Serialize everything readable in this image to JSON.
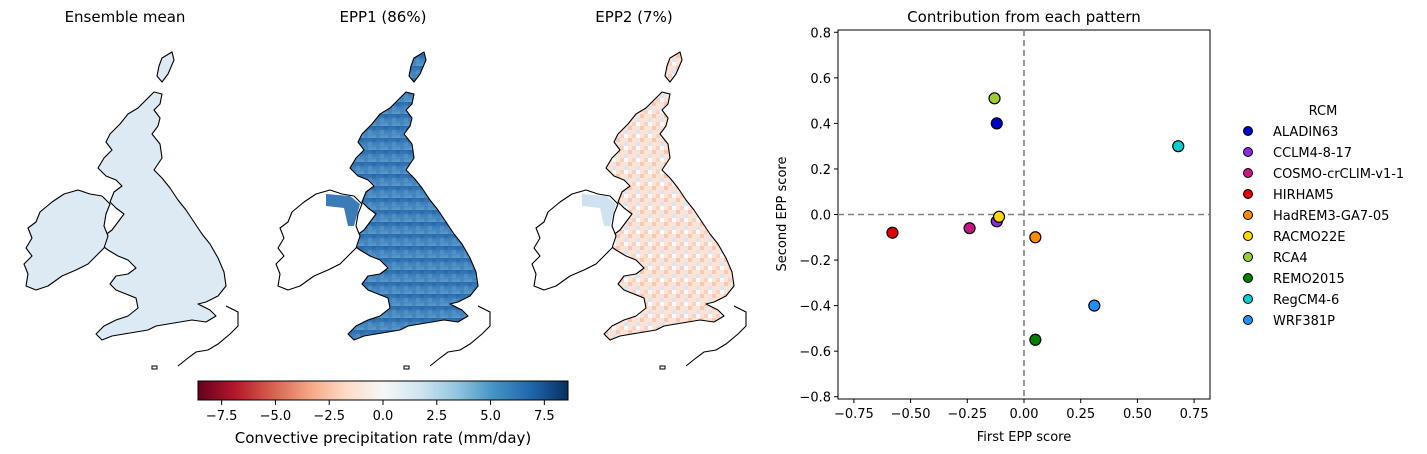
{
  "maps": {
    "panels": [
      {
        "title": "Ensemble mean",
        "style": "mean"
      },
      {
        "title": "EPP1 (86%)",
        "style": "epp1"
      },
      {
        "title": "EPP2 (7%)",
        "style": "epp2"
      }
    ],
    "colorbar": {
      "label": "Convective precipitation rate (mm/day)",
      "range": [
        -8.6,
        8.6
      ],
      "ticks": [
        -7.5,
        -5.0,
        -2.5,
        0.0,
        2.5,
        5.0,
        7.5
      ],
      "tick_labels": [
        "−7.5",
        "−5.0",
        "−2.5",
        "0.0",
        "2.5",
        "5.0",
        "7.5"
      ],
      "colormap": [
        "#67001f",
        "#b2182b",
        "#d6604d",
        "#f4a582",
        "#fddbc7",
        "#f7f7f7",
        "#d1e5f0",
        "#92c5de",
        "#4393c3",
        "#2166ac",
        "#053061"
      ]
    }
  },
  "chart_data": {
    "type": "scatter",
    "title": "Contribution from each pattern",
    "xlabel": "First EPP score",
    "ylabel": "Second EPP score",
    "xlim": [
      -0.82,
      0.82
    ],
    "ylim": [
      -0.81,
      0.81
    ],
    "x_ticks": [
      -0.75,
      -0.5,
      -0.25,
      0.0,
      0.25,
      0.5,
      0.75
    ],
    "x_tick_labels": [
      "−0.75",
      "−0.50",
      "−0.25",
      "0.00",
      "0.25",
      "0.50",
      "0.75"
    ],
    "y_ticks": [
      -0.8,
      -0.6,
      -0.4,
      -0.2,
      0.0,
      0.2,
      0.4,
      0.6,
      0.8
    ],
    "y_tick_labels": [
      "−0.8",
      "−0.6",
      "−0.4",
      "−0.2",
      "0.0",
      "0.2",
      "0.4",
      "0.6",
      "0.8"
    ],
    "reference_lines": {
      "x": 0.0,
      "y": 0.0,
      "style": "dashed",
      "color": "#808080"
    },
    "grid": false,
    "legend": {
      "title": "RCM",
      "placement": "outside right"
    },
    "series": [
      {
        "name": "ALADIN63",
        "color": "#0000cd",
        "x": -0.12,
        "y": 0.4
      },
      {
        "name": "CCLM4-8-17",
        "color": "#8a2be2",
        "x": -0.12,
        "y": -0.03
      },
      {
        "name": "COSMO-crCLIM-v1-1",
        "color": "#c71585",
        "x": -0.24,
        "y": -0.06
      },
      {
        "name": "HIRHAM5",
        "color": "#e00000",
        "x": -0.58,
        "y": -0.08
      },
      {
        "name": "HadREM3-GA7-05",
        "color": "#ff8c00",
        "x": 0.05,
        "y": -0.1
      },
      {
        "name": "RACMO22E",
        "color": "#ffd700",
        "x": -0.11,
        "y": -0.01
      },
      {
        "name": "RCA4",
        "color": "#9acd32",
        "x": -0.13,
        "y": 0.51
      },
      {
        "name": "REMO2015",
        "color": "#008000",
        "x": 0.05,
        "y": -0.55
      },
      {
        "name": "RegCM4-6",
        "color": "#00ced1",
        "x": 0.68,
        "y": 0.3
      },
      {
        "name": "WRF381P",
        "color": "#1e90ff",
        "x": 0.31,
        "y": -0.4
      }
    ]
  }
}
